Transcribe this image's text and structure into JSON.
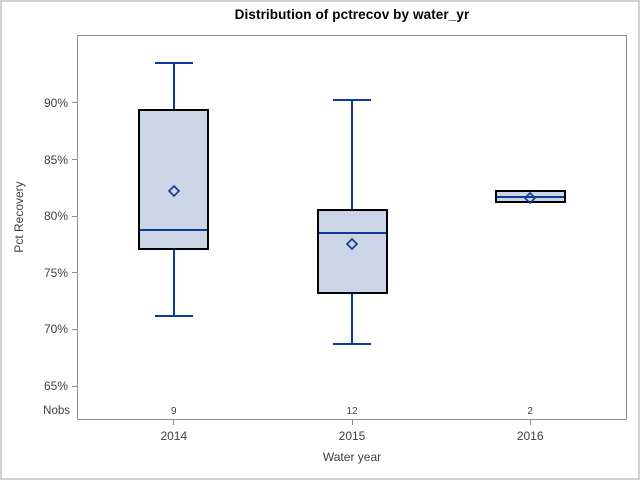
{
  "figure": {
    "background": "#ffffff",
    "border_color": "#d2d2d2"
  },
  "chart_data": {
    "type": "boxplot",
    "title": "Distribution of pctrecov by water_yr",
    "xlabel": "Water year",
    "ylabel": "Pct Recovery",
    "nobs_label": "Nobs",
    "categories": [
      "2014",
      "2015",
      "2016"
    ],
    "nobs": [
      "9",
      "12",
      "2"
    ],
    "series": [
      {
        "category": "2014",
        "min": 71.2,
        "q1": 77.0,
        "median": 78.8,
        "q3": 89.5,
        "max": 93.5,
        "mean": 82.3
      },
      {
        "category": "2015",
        "min": 68.7,
        "q1": 73.1,
        "median": 78.5,
        "q3": 80.6,
        "max": 90.3,
        "mean": 77.6
      },
      {
        "category": "2016",
        "min": 81.2,
        "q1": 81.2,
        "median": 81.7,
        "q3": 82.3,
        "max": 82.3,
        "mean": 81.7
      }
    ],
    "y_ticks": [
      90,
      85,
      80,
      75,
      70,
      65
    ],
    "y_tick_suffix": "%",
    "ylim": [
      62,
      96
    ],
    "grid": false,
    "legend": "none",
    "colors": {
      "box_fill": "#ccd5e5",
      "box_border": "#000000",
      "line": "#0d3a97",
      "frame": "#8f8f8f",
      "tick_text": "#3f3f3f",
      "title_text": "#000000"
    }
  }
}
